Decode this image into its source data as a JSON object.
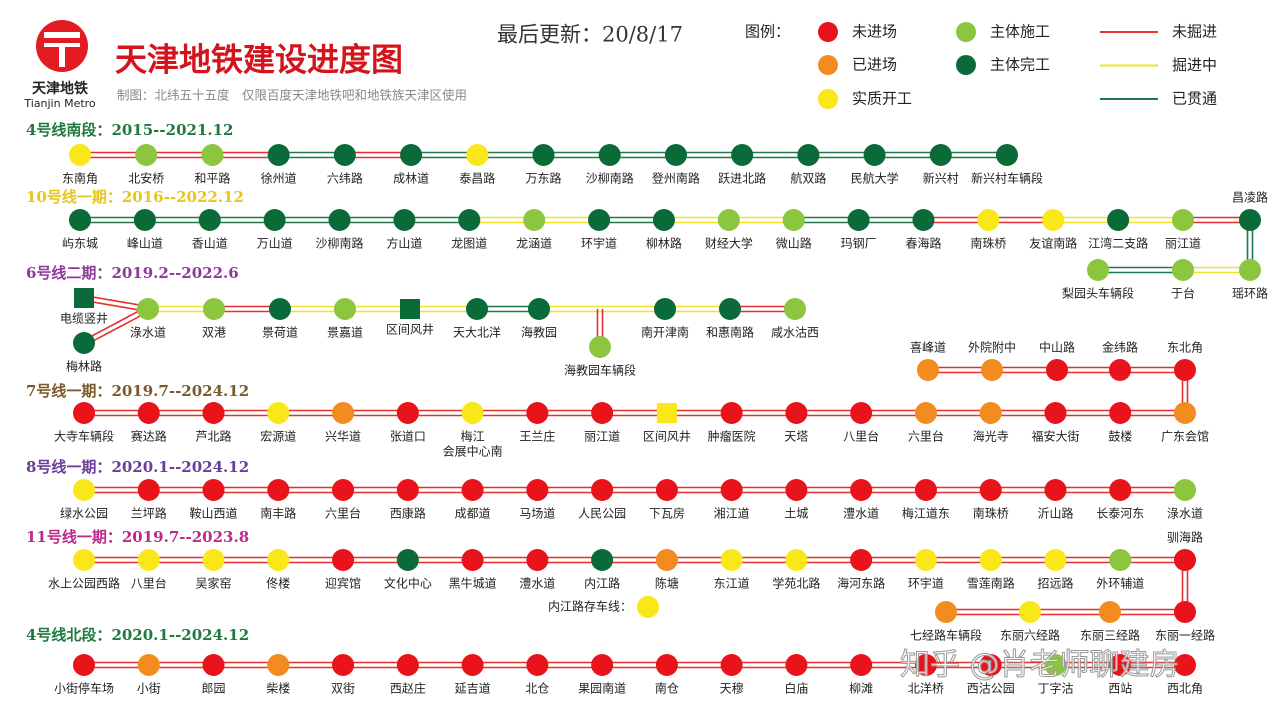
{
  "header": {
    "logo_name": "天津地铁",
    "logo_en": "Tianjin Metro",
    "title": "天津地铁建设进度图",
    "updated": "最后更新：20/8/17",
    "credit": "制图：北纬五十五度　仅限百度天津地铁吧和地铁族天津区使用"
  },
  "legend": {
    "title": "图例：",
    "stations": [
      {
        "label": "未进场",
        "color": "#e8131b"
      },
      {
        "label": "已进场",
        "color": "#f28c1e"
      },
      {
        "label": "实质开工",
        "color": "#f9e71a"
      },
      {
        "label": "主体施工",
        "color": "#8cc63f"
      },
      {
        "label": "主体完工",
        "color": "#0b6b38"
      }
    ],
    "tracks": [
      {
        "label": "未掘进",
        "color": "#e53030"
      },
      {
        "label": "掘进中",
        "color": "#f0e22a"
      },
      {
        "label": "已贯通",
        "color": "#1e7a4e"
      }
    ]
  },
  "lines": [
    {
      "title": "4号线南段：2015--2021.12",
      "title_color": "#1e7a3e",
      "stations": [
        "东南角",
        "北安桥",
        "和平路",
        "徐州道",
        "六纬路",
        "成林道",
        "泰昌路",
        "万东路",
        "沙柳南路",
        "登州南路",
        "跃进北路",
        "航双路",
        "民航大学",
        "新兴村",
        "新兴村车辆段"
      ],
      "colors": [
        "#f9e71a",
        "#8cc63f",
        "#8cc63f",
        "#0b6b38",
        "#0b6b38",
        "#0b6b38",
        "#f9e71a",
        "#0b6b38",
        "#0b6b38",
        "#0b6b38",
        "#0b6b38",
        "#0b6b38",
        "#0b6b38",
        "#0b6b38",
        "#0b6b38"
      ],
      "tracks": [
        "#e53030",
        "#e53030",
        "#e53030",
        "#1e7a4e",
        "#e53030",
        "#1e7a4e",
        "#1e7a4e",
        "#1e7a4e",
        "#1e7a4e",
        "#1e7a4e",
        "#1e7a4e",
        "#1e7a4e",
        "#1e7a4e",
        "#1e7a4e"
      ]
    },
    {
      "title": "10号线一期：2016--2022.12",
      "title_color": "#e6c619",
      "stations": [
        "屿东城",
        "峰山道",
        "香山道",
        "万山道",
        "沙柳南路",
        "方山道",
        "龙图道",
        "龙涵道",
        "环宇道",
        "柳林路",
        "财经大学",
        "微山路",
        "玛钢厂",
        "春海路",
        "南珠桥",
        "友谊南路",
        "江湾二支路",
        "丽江道",
        "昌凌路",
        "瑶环路",
        "于台",
        "梨园头车辆段"
      ],
      "colors": [
        "#0b6b38",
        "#0b6b38",
        "#0b6b38",
        "#0b6b38",
        "#0b6b38",
        "#0b6b38",
        "#0b6b38",
        "#8cc63f",
        "#0b6b38",
        "#0b6b38",
        "#8cc63f",
        "#8cc63f",
        "#0b6b38",
        "#0b6b38",
        "#f9e71a",
        "#f9e71a",
        "#0b6b38",
        "#8cc63f",
        "#0b6b38",
        "#8cc63f",
        "#8cc63f",
        "#8cc63f"
      ],
      "tracks": [
        "#1e7a4e",
        "#1e7a4e",
        "#1e7a4e",
        "#1e7a4e",
        "#1e7a4e",
        "#1e7a4e",
        "#f0e22a",
        "#f0e22a",
        "#1e7a4e",
        "#f0e22a",
        "#f0e22a",
        "#1e7a4e",
        "#1e7a4e",
        "#e53030",
        "#e53030",
        "#f0e22a",
        "#f0e22a",
        "#e53030",
        "#1e7a4e",
        "#f0e22a",
        "#1e7a4e"
      ]
    },
    {
      "title": "6号线二期：2019.2--2022.6",
      "title_color": "#8e3a9a",
      "stations": [
        "电缆竖井",
        "梅林路",
        "淥水道",
        "双港",
        "景荷道",
        "景嘉道",
        "区间风井",
        "天大北洋",
        "海教园",
        "南开津南",
        "和惠南路",
        "咸水沽西",
        "海教园车辆段"
      ],
      "colors": [
        "#0b6b38",
        "#0b6b38",
        "#8cc63f",
        "#8cc63f",
        "#0b6b38",
        "#8cc63f",
        "#0b6b38",
        "#0b6b38",
        "#0b6b38",
        "#0b6b38",
        "#0b6b38",
        "#8cc63f",
        "#8cc63f"
      ],
      "shapes": [
        "square",
        "circle",
        "circle",
        "circle",
        "circle",
        "circle",
        "square",
        "circle",
        "circle",
        "circle",
        "circle",
        "circle",
        "circle"
      ],
      "tracks": [
        "#e53030",
        "#e53030",
        "#f0e22a",
        "#e53030",
        "#f0e22a",
        "#f0e22a",
        "#f0e22a",
        "#1e7a4e",
        "#f0e22a",
        "#f0e22a",
        "#e53030",
        "#e53030"
      ]
    },
    {
      "title": "7号线一期：2019.7--2024.12",
      "title_color": "#7a5a2a",
      "stations": [
        "大寺车辆段",
        "赛达路",
        "芦北路",
        "宏源道",
        "兴华道",
        "张道口",
        [
          "梅江",
          "会展中心南"
        ],
        "王兰庄",
        "丽江道",
        "区间风井",
        "肿瘤医院",
        "天塔",
        "八里台",
        "六里台",
        "海光寺",
        "福安大街",
        "鼓楼",
        "广东会馆",
        "东北角",
        "金纬路",
        "中山路",
        "外院附中",
        "喜峰道"
      ],
      "colors": [
        "#e8131b",
        "#e8131b",
        "#e8131b",
        "#f9e71a",
        "#f28c1e",
        "#e8131b",
        "#f9e71a",
        "#e8131b",
        "#e8131b",
        "#f9e71a",
        "#e8131b",
        "#e8131b",
        "#e8131b",
        "#f28c1e",
        "#f28c1e",
        "#e8131b",
        "#e8131b",
        "#f28c1e",
        "#e8131b",
        "#e8131b",
        "#e8131b",
        "#f28c1e",
        "#f28c1e"
      ],
      "shapes": [
        "circle",
        "circle",
        "circle",
        "circle",
        "circle",
        "circle",
        "circle",
        "circle",
        "circle",
        "square",
        "circle",
        "circle",
        "circle",
        "circle",
        "circle",
        "circle",
        "circle",
        "circle",
        "circle",
        "circle",
        "circle",
        "circle",
        "circle"
      ],
      "tracks": [
        "#e53030",
        "#e53030",
        "#e53030",
        "#e53030",
        "#e53030",
        "#e53030",
        "#e53030",
        "#e53030",
        "#e53030",
        "#e53030",
        "#e53030",
        "#e53030",
        "#e53030",
        "#e53030",
        "#e53030",
        "#e53030",
        "#e53030",
        "#e53030",
        "#e53030",
        "#e53030",
        "#e53030",
        "#e53030"
      ]
    },
    {
      "title": "8号线一期：2020.1--2024.12",
      "title_color": "#6a3d9a",
      "stations": [
        "绿水公园",
        "兰坪路",
        "鞍山西道",
        "南丰路",
        "六里台",
        "西康路",
        "成都道",
        "马场道",
        "人民公园",
        "下瓦房",
        "湘江道",
        "土城",
        "澧水道",
        "梅江道东",
        "南珠桥",
        "沂山路",
        "长泰河东",
        "淥水道"
      ],
      "colors": [
        "#f9e71a",
        "#e8131b",
        "#e8131b",
        "#e8131b",
        "#e8131b",
        "#e8131b",
        "#e8131b",
        "#e8131b",
        "#e8131b",
        "#e8131b",
        "#e8131b",
        "#e8131b",
        "#e8131b",
        "#e8131b",
        "#e8131b",
        "#e8131b",
        "#e8131b",
        "#8cc63f"
      ],
      "tracks": [
        "#e53030",
        "#e53030",
        "#e53030",
        "#e53030",
        "#e53030",
        "#e53030",
        "#e53030",
        "#e53030",
        "#e53030",
        "#e53030",
        "#e53030",
        "#e53030",
        "#e53030",
        "#e53030",
        "#e53030",
        "#e53030",
        "#e53030"
      ]
    },
    {
      "title": "11号线一期：2019.7--2023.8",
      "title_color": "#c0288a",
      "stations": [
        "水上公园西路",
        "八里台",
        "吴家窑",
        "佟楼",
        "迎宾馆",
        "文化中心",
        "黑牛城道",
        "澧水道",
        "内江路",
        "陈塘",
        "东江道",
        "学苑北路",
        "海河东路",
        "环宇道",
        "雪莲南路",
        "招远路",
        "外环辅道",
        "驯海路",
        "东丽一经路",
        "东丽三经路",
        "东丽六经路",
        "七经路车辆段"
      ],
      "colors": [
        "#f9e71a",
        "#f9e71a",
        "#f9e71a",
        "#f9e71a",
        "#e8131b",
        "#0b6b38",
        "#e8131b",
        "#e8131b",
        "#0b6b38",
        "#f28c1e",
        "#f9e71a",
        "#f9e71a",
        "#e8131b",
        "#f9e71a",
        "#f9e71a",
        "#f9e71a",
        "#8cc63f",
        "#e8131b",
        "#e8131b",
        "#f28c1e",
        "#f9e71a",
        "#f28c1e"
      ],
      "tracks": [
        "#e53030",
        "#e53030",
        "#e53030",
        "#e53030",
        "#e53030",
        "#e53030",
        "#e53030",
        "#e53030",
        "#e53030",
        "#e53030",
        "#e53030",
        "#e53030",
        "#e53030",
        "#e53030",
        "#e53030",
        "#e53030",
        "#e53030",
        "#e53030",
        "#e53030",
        "#e53030",
        "#e53030"
      ],
      "note": {
        "label": "内江路存车线：",
        "color": "#f9e71a"
      }
    },
    {
      "title": "4号线北段：2020.1--2024.12",
      "title_color": "#1e7a3e",
      "stations": [
        "小街停车场",
        "小街",
        "郎园",
        "柴楼",
        "双街",
        "西赵庄",
        "延吉道",
        "北仓",
        "果园南道",
        "南仓",
        "天穆",
        "白庙",
        "柳滩",
        "北洋桥",
        "西沽公园",
        "丁字沽",
        "西站",
        "西北角"
      ],
      "colors": [
        "#e8131b",
        "#f28c1e",
        "#e8131b",
        "#f28c1e",
        "#e8131b",
        "#e8131b",
        "#e8131b",
        "#e8131b",
        "#e8131b",
        "#e8131b",
        "#e8131b",
        "#e8131b",
        "#e8131b",
        "#e8131b",
        "#e8131b",
        "#8cc63f",
        "#e8131b",
        "#e8131b"
      ],
      "tracks": [
        "#e53030",
        "#e53030",
        "#e53030",
        "#e53030",
        "#e53030",
        "#e53030",
        "#e53030",
        "#e53030",
        "#e53030",
        "#e53030",
        "#e53030",
        "#e53030",
        "#e53030",
        "#e53030",
        "#e53030",
        "#e53030",
        "#e53030"
      ]
    }
  ],
  "watermark": "知乎 @肖老师聊建房"
}
